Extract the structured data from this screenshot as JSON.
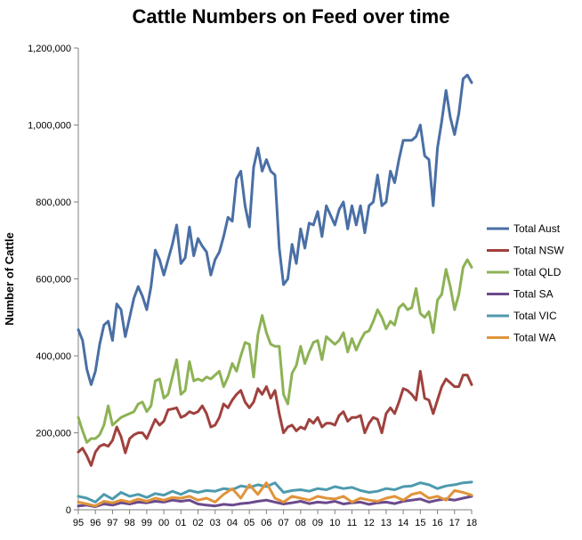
{
  "chart_data": {
    "type": "line",
    "title": "Cattle Numbers on Feed over time",
    "xlabel": "",
    "ylabel": "Number of Cattle",
    "ylim": [
      0,
      1200000
    ],
    "yticks": [
      0,
      200000,
      400000,
      600000,
      800000,
      1000000,
      1200000
    ],
    "ytick_labels": [
      "0",
      "200,000",
      "400,000",
      "600,000",
      "800,000",
      "1,000,000",
      "1,200,000"
    ],
    "x_tick_labels": [
      "95",
      "96",
      "97",
      "98",
      "99",
      "00",
      "01",
      "02",
      "03",
      "04",
      "05",
      "06",
      "07",
      "08",
      "09",
      "10",
      "11",
      "12",
      "13",
      "14",
      "15",
      "16",
      "17",
      "18"
    ],
    "x_range": [
      1995,
      2018
    ],
    "grid": false,
    "legend_position": "right",
    "series": [
      {
        "name": "Total Aust",
        "color": "#4a6fa5",
        "x": [
          1995.0,
          1995.25,
          1995.5,
          1995.75,
          1996.0,
          1996.25,
          1996.5,
          1996.75,
          1997.0,
          1997.25,
          1997.5,
          1997.75,
          1998.0,
          1998.25,
          1998.5,
          1998.75,
          1999.0,
          1999.25,
          1999.5,
          1999.75,
          2000.0,
          2000.25,
          2000.5,
          2000.75,
          2001.0,
          2001.25,
          2001.5,
          2001.75,
          2002.0,
          2002.25,
          2002.5,
          2002.75,
          2003.0,
          2003.25,
          2003.5,
          2003.75,
          2004.0,
          2004.25,
          2004.5,
          2004.75,
          2005.0,
          2005.25,
          2005.5,
          2005.75,
          2006.0,
          2006.25,
          2006.5,
          2006.75,
          2007.0,
          2007.25,
          2007.5,
          2007.75,
          2008.0,
          2008.25,
          2008.5,
          2008.75,
          2009.0,
          2009.25,
          2009.5,
          2009.75,
          2010.0,
          2010.25,
          2010.5,
          2010.75,
          2011.0,
          2011.25,
          2011.5,
          2011.75,
          2012.0,
          2012.25,
          2012.5,
          2012.75,
          2013.0,
          2013.25,
          2013.5,
          2013.75,
          2014.0,
          2014.25,
          2014.5,
          2014.75,
          2015.0,
          2015.25,
          2015.5,
          2015.75,
          2016.0,
          2016.25,
          2016.5,
          2016.75,
          2017.0,
          2017.25,
          2017.5,
          2017.75,
          2018.0
        ],
        "values": [
          468000,
          440000,
          365000,
          325000,
          360000,
          430000,
          480000,
          490000,
          440000,
          535000,
          520000,
          450000,
          500000,
          550000,
          580000,
          555000,
          520000,
          580000,
          675000,
          650000,
          610000,
          650000,
          690000,
          740000,
          640000,
          655000,
          735000,
          660000,
          705000,
          685000,
          670000,
          610000,
          650000,
          670000,
          710000,
          760000,
          750000,
          860000,
          880000,
          790000,
          735000,
          890000,
          940000,
          880000,
          910000,
          880000,
          870000,
          680000,
          585000,
          600000,
          690000,
          640000,
          730000,
          680000,
          745000,
          740000,
          775000,
          710000,
          790000,
          765000,
          740000,
          780000,
          800000,
          730000,
          790000,
          740000,
          790000,
          720000,
          790000,
          800000,
          870000,
          790000,
          800000,
          880000,
          850000,
          910000,
          960000,
          960000,
          960000,
          970000,
          1000000,
          920000,
          910000,
          790000,
          940000,
          1010000,
          1090000,
          1020000,
          975000,
          1030000,
          1120000,
          1130000,
          1110000
        ]
      },
      {
        "name": "Total NSW",
        "color": "#a0413e",
        "x": [
          1995.0,
          1995.25,
          1995.5,
          1995.75,
          1996.0,
          1996.25,
          1996.5,
          1996.75,
          1997.0,
          1997.25,
          1997.5,
          1997.75,
          1998.0,
          1998.25,
          1998.5,
          1998.75,
          1999.0,
          1999.25,
          1999.5,
          1999.75,
          2000.0,
          2000.25,
          2000.5,
          2000.75,
          2001.0,
          2001.25,
          2001.5,
          2001.75,
          2002.0,
          2002.25,
          2002.5,
          2002.75,
          2003.0,
          2003.25,
          2003.5,
          2003.75,
          2004.0,
          2004.25,
          2004.5,
          2004.75,
          2005.0,
          2005.25,
          2005.5,
          2005.75,
          2006.0,
          2006.25,
          2006.5,
          2006.75,
          2007.0,
          2007.25,
          2007.5,
          2007.75,
          2008.0,
          2008.25,
          2008.5,
          2008.75,
          2009.0,
          2009.25,
          2009.5,
          2009.75,
          2010.0,
          2010.25,
          2010.5,
          2010.75,
          2011.0,
          2011.25,
          2011.5,
          2011.75,
          2012.0,
          2012.25,
          2012.5,
          2012.75,
          2013.0,
          2013.25,
          2013.5,
          2013.75,
          2014.0,
          2014.25,
          2014.5,
          2014.75,
          2015.0,
          2015.25,
          2015.5,
          2015.75,
          2016.0,
          2016.25,
          2016.5,
          2016.75,
          2017.0,
          2017.25,
          2017.5,
          2017.75,
          2018.0
        ],
        "values": [
          150000,
          160000,
          140000,
          115000,
          150000,
          165000,
          170000,
          165000,
          180000,
          215000,
          190000,
          148000,
          185000,
          195000,
          200000,
          200000,
          185000,
          210000,
          235000,
          220000,
          230000,
          260000,
          262000,
          265000,
          240000,
          245000,
          255000,
          250000,
          255000,
          270000,
          250000,
          215000,
          220000,
          240000,
          275000,
          265000,
          285000,
          300000,
          310000,
          280000,
          265000,
          280000,
          315000,
          300000,
          320000,
          290000,
          310000,
          250000,
          200000,
          215000,
          220000,
          205000,
          215000,
          210000,
          235000,
          225000,
          240000,
          215000,
          225000,
          225000,
          220000,
          245000,
          255000,
          230000,
          240000,
          240000,
          245000,
          200000,
          225000,
          240000,
          235000,
          200000,
          250000,
          265000,
          250000,
          280000,
          315000,
          310000,
          300000,
          285000,
          360000,
          290000,
          285000,
          250000,
          285000,
          320000,
          340000,
          330000,
          320000,
          320000,
          350000,
          350000,
          325000
        ]
      },
      {
        "name": "Total QLD",
        "color": "#8db255",
        "x": [
          1995.0,
          1995.25,
          1995.5,
          1995.75,
          1996.0,
          1996.25,
          1996.5,
          1996.75,
          1997.0,
          1997.25,
          1997.5,
          1997.75,
          1998.0,
          1998.25,
          1998.5,
          1998.75,
          1999.0,
          1999.25,
          1999.5,
          1999.75,
          2000.0,
          2000.25,
          2000.5,
          2000.75,
          2001.0,
          2001.25,
          2001.5,
          2001.75,
          2002.0,
          2002.25,
          2002.5,
          2002.75,
          2003.0,
          2003.25,
          2003.5,
          2003.75,
          2004.0,
          2004.25,
          2004.5,
          2004.75,
          2005.0,
          2005.25,
          2005.5,
          2005.75,
          2006.0,
          2006.25,
          2006.5,
          2006.75,
          2007.0,
          2007.25,
          2007.5,
          2007.75,
          2008.0,
          2008.25,
          2008.5,
          2008.75,
          2009.0,
          2009.25,
          2009.5,
          2009.75,
          2010.0,
          2010.25,
          2010.5,
          2010.75,
          2011.0,
          2011.25,
          2011.5,
          2011.75,
          2012.0,
          2012.25,
          2012.5,
          2012.75,
          2013.0,
          2013.25,
          2013.5,
          2013.75,
          2014.0,
          2014.25,
          2014.5,
          2014.75,
          2015.0,
          2015.25,
          2015.5,
          2015.75,
          2016.0,
          2016.25,
          2016.5,
          2016.75,
          2017.0,
          2017.25,
          2017.5,
          2017.75,
          2018.0
        ],
        "values": [
          240000,
          205000,
          175000,
          185000,
          185000,
          195000,
          220000,
          270000,
          220000,
          230000,
          240000,
          245000,
          250000,
          255000,
          275000,
          280000,
          255000,
          270000,
          335000,
          340000,
          290000,
          300000,
          345000,
          390000,
          300000,
          310000,
          385000,
          335000,
          340000,
          335000,
          345000,
          340000,
          350000,
          360000,
          320000,
          345000,
          380000,
          360000,
          400000,
          435000,
          430000,
          345000,
          455000,
          505000,
          460000,
          430000,
          425000,
          425000,
          300000,
          275000,
          355000,
          375000,
          425000,
          380000,
          410000,
          435000,
          440000,
          390000,
          450000,
          440000,
          430000,
          440000,
          460000,
          410000,
          445000,
          415000,
          440000,
          460000,
          465000,
          490000,
          520000,
          500000,
          470000,
          490000,
          480000,
          525000,
          535000,
          520000,
          525000,
          575000,
          510000,
          500000,
          515000,
          460000,
          545000,
          560000,
          625000,
          580000,
          520000,
          560000,
          630000,
          650000,
          630000
        ]
      },
      {
        "name": "Total SA",
        "color": "#6b4a8c",
        "x": [
          1995.0,
          1995.5,
          1996.0,
          1996.5,
          1997.0,
          1997.5,
          1998.0,
          1998.5,
          1999.0,
          1999.5,
          2000.0,
          2000.5,
          2001.0,
          2001.5,
          2002.0,
          2002.5,
          2003.0,
          2003.5,
          2004.0,
          2004.5,
          2005.0,
          2005.5,
          2006.0,
          2006.5,
          2007.0,
          2007.5,
          2008.0,
          2008.5,
          2009.0,
          2009.5,
          2010.0,
          2010.5,
          2011.0,
          2011.5,
          2012.0,
          2012.5,
          2013.0,
          2013.5,
          2014.0,
          2014.5,
          2015.0,
          2015.5,
          2016.0,
          2016.5,
          2017.0,
          2017.5,
          2018.0
        ],
        "values": [
          10000,
          12000,
          8000,
          15000,
          12000,
          18000,
          15000,
          20000,
          18000,
          22000,
          20000,
          25000,
          22000,
          25000,
          15000,
          12000,
          10000,
          14000,
          12000,
          16000,
          18000,
          22000,
          25000,
          20000,
          15000,
          18000,
          22000,
          16000,
          20000,
          18000,
          22000,
          15000,
          18000,
          20000,
          14000,
          18000,
          20000,
          16000,
          22000,
          25000,
          28000,
          20000,
          25000,
          28000,
          25000,
          30000,
          35000
        ]
      },
      {
        "name": "Total VIC",
        "color": "#4e9aae",
        "x": [
          1995.0,
          1995.5,
          1996.0,
          1996.5,
          1997.0,
          1997.5,
          1998.0,
          1998.5,
          1999.0,
          1999.5,
          2000.0,
          2000.5,
          2001.0,
          2001.5,
          2002.0,
          2002.5,
          2003.0,
          2003.5,
          2004.0,
          2004.5,
          2005.0,
          2005.5,
          2006.0,
          2006.5,
          2007.0,
          2007.5,
          2008.0,
          2008.5,
          2009.0,
          2009.5,
          2010.0,
          2010.5,
          2011.0,
          2011.5,
          2012.0,
          2012.5,
          2013.0,
          2013.5,
          2014.0,
          2014.5,
          2015.0,
          2015.5,
          2016.0,
          2016.5,
          2017.0,
          2017.5,
          2018.0
        ],
        "values": [
          35000,
          30000,
          20000,
          40000,
          28000,
          45000,
          35000,
          40000,
          32000,
          42000,
          38000,
          48000,
          40000,
          50000,
          45000,
          50000,
          48000,
          55000,
          52000,
          62000,
          58000,
          65000,
          60000,
          70000,
          45000,
          50000,
          52000,
          48000,
          55000,
          52000,
          60000,
          55000,
          58000,
          50000,
          45000,
          48000,
          55000,
          52000,
          60000,
          62000,
          70000,
          65000,
          55000,
          62000,
          65000,
          70000,
          72000
        ]
      },
      {
        "name": "Total WA",
        "color": "#e0943a",
        "x": [
          1995.0,
          1995.5,
          1996.0,
          1996.5,
          1997.0,
          1997.5,
          1998.0,
          1998.5,
          1999.0,
          1999.5,
          2000.0,
          2000.5,
          2001.0,
          2001.5,
          2002.0,
          2002.5,
          2003.0,
          2003.5,
          2004.0,
          2004.5,
          2005.0,
          2005.5,
          2006.0,
          2006.5,
          2007.0,
          2007.5,
          2008.0,
          2008.5,
          2009.0,
          2009.5,
          2010.0,
          2010.5,
          2011.0,
          2011.5,
          2012.0,
          2012.5,
          2013.0,
          2013.5,
          2014.0,
          2014.5,
          2015.0,
          2015.5,
          2016.0,
          2016.5,
          2017.0,
          2017.5,
          2018.0
        ],
        "values": [
          20000,
          15000,
          10000,
          22000,
          18000,
          25000,
          20000,
          28000,
          22000,
          30000,
          25000,
          32000,
          30000,
          35000,
          25000,
          30000,
          20000,
          40000,
          55000,
          30000,
          65000,
          40000,
          70000,
          30000,
          20000,
          35000,
          30000,
          25000,
          35000,
          30000,
          28000,
          35000,
          20000,
          30000,
          25000,
          22000,
          30000,
          35000,
          25000,
          40000,
          45000,
          30000,
          35000,
          25000,
          50000,
          45000,
          38000
        ]
      }
    ]
  }
}
